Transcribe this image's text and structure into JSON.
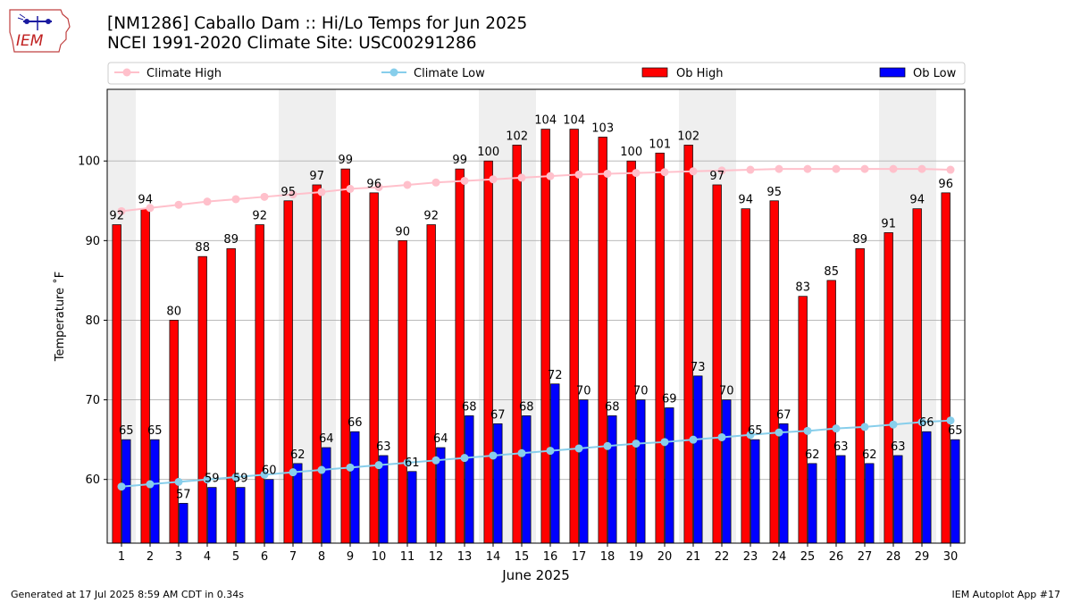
{
  "header": {
    "logo_text": "IEM",
    "title_line1": "[NM1286] Caballo Dam :: Hi/Lo Temps for Jun 2025",
    "title_line2": "NCEI 1991-2020 Climate Site: USC00291286"
  },
  "footer": {
    "generated": "Generated at 17 Jul 2025 8:59 AM CDT in 0.34s",
    "app": "IEM Autoplot App #17"
  },
  "colors": {
    "ob_high": "#ff0000",
    "ob_low": "#0000ff",
    "climate_high": "#ffc0cb",
    "climate_low": "#87ceeb",
    "weekend_shade": "#efefef",
    "grid": "#b0b0b0"
  },
  "chart_data": {
    "type": "bar",
    "xlabel": "June 2025",
    "ylabel": "Temperature ˚F",
    "ylim": [
      52,
      109
    ],
    "yticks": [
      60,
      70,
      80,
      90,
      100
    ],
    "grid": "horizontal",
    "legend_position": "top",
    "categories": [
      "1",
      "2",
      "3",
      "4",
      "5",
      "6",
      "7",
      "8",
      "9",
      "10",
      "11",
      "12",
      "13",
      "14",
      "15",
      "16",
      "17",
      "18",
      "19",
      "20",
      "21",
      "22",
      "23",
      "24",
      "25",
      "26",
      "27",
      "28",
      "29",
      "30"
    ],
    "weekend_days": [
      1,
      7,
      8,
      14,
      15,
      21,
      22,
      28,
      29
    ],
    "series": [
      {
        "name": "Ob High",
        "kind": "bar",
        "values": [
          92,
          94,
          80,
          88,
          89,
          92,
          95,
          97,
          99,
          96,
          90,
          92,
          99,
          100,
          102,
          104,
          104,
          103,
          100,
          101,
          102,
          97,
          94,
          95,
          83,
          85,
          89,
          91,
          94,
          96
        ]
      },
      {
        "name": "Ob Low",
        "kind": "bar",
        "values": [
          65,
          65,
          57,
          59,
          59,
          60,
          62,
          64,
          66,
          63,
          61,
          64,
          68,
          67,
          68,
          72,
          70,
          68,
          70,
          69,
          73,
          70,
          65,
          67,
          62,
          63,
          62,
          63,
          66,
          65
        ]
      },
      {
        "name": "Climate High",
        "kind": "line",
        "values": [
          93.7,
          94.1,
          94.5,
          94.9,
          95.2,
          95.5,
          95.8,
          96.1,
          96.5,
          96.7,
          97.0,
          97.3,
          97.5,
          97.7,
          97.9,
          98.1,
          98.3,
          98.4,
          98.5,
          98.6,
          98.7,
          98.8,
          98.9,
          99.0,
          99.0,
          99.0,
          99.0,
          99.0,
          99.0,
          98.9
        ]
      },
      {
        "name": "Climate Low",
        "kind": "line",
        "values": [
          59.1,
          59.4,
          59.7,
          60.0,
          60.3,
          60.6,
          60.9,
          61.2,
          61.5,
          61.8,
          62.1,
          62.4,
          62.7,
          63.0,
          63.3,
          63.6,
          63.9,
          64.2,
          64.5,
          64.7,
          65.0,
          65.3,
          65.6,
          65.9,
          66.1,
          66.4,
          66.6,
          66.9,
          67.2,
          67.4
        ]
      }
    ]
  }
}
